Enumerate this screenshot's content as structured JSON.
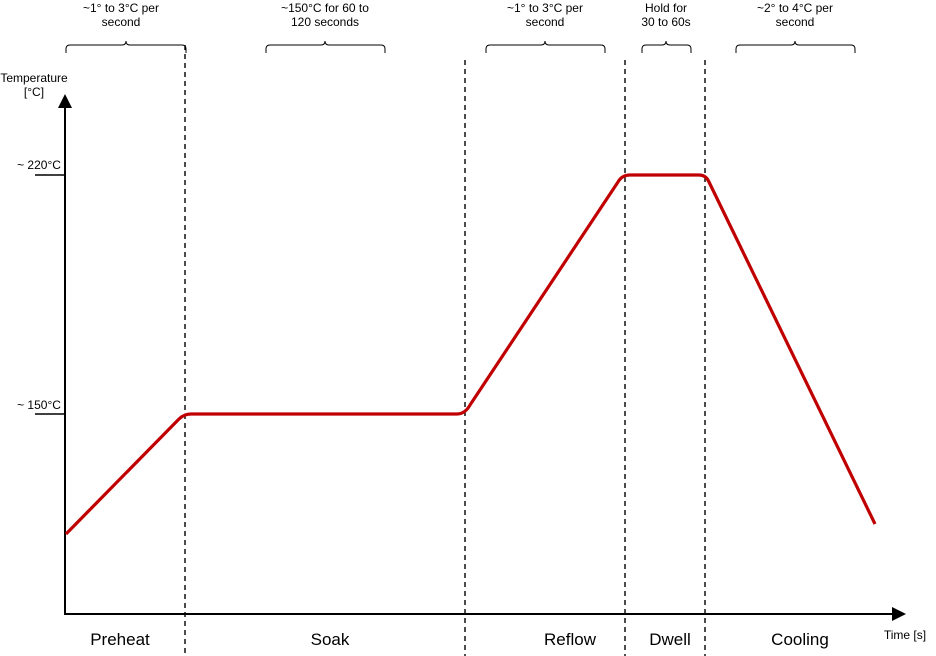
{
  "axes": {
    "y_label_line1": "Temperature",
    "y_label_line2": "[°C]",
    "x_label": "Time [s]",
    "y_ticks": [
      "~ 220°C",
      "~ 150°C"
    ]
  },
  "annotations": [
    {
      "line1": "~1° to 3°C per",
      "line2": "second"
    },
    {
      "line1": "~150°C for 60 to",
      "line2": "120 seconds"
    },
    {
      "line1": "~1° to 3°C per",
      "line2": "second"
    },
    {
      "line1": "Hold for",
      "line2": "30 to 60s"
    },
    {
      "line1": "~2° to 4°C per",
      "line2": "second"
    }
  ],
  "phases": [
    "Preheat",
    "Soak",
    "Reflow",
    "Dwell",
    "Cooling"
  ],
  "colors": {
    "profile_line": "#c00000",
    "axis": "#000000",
    "divider": "#000000"
  }
}
